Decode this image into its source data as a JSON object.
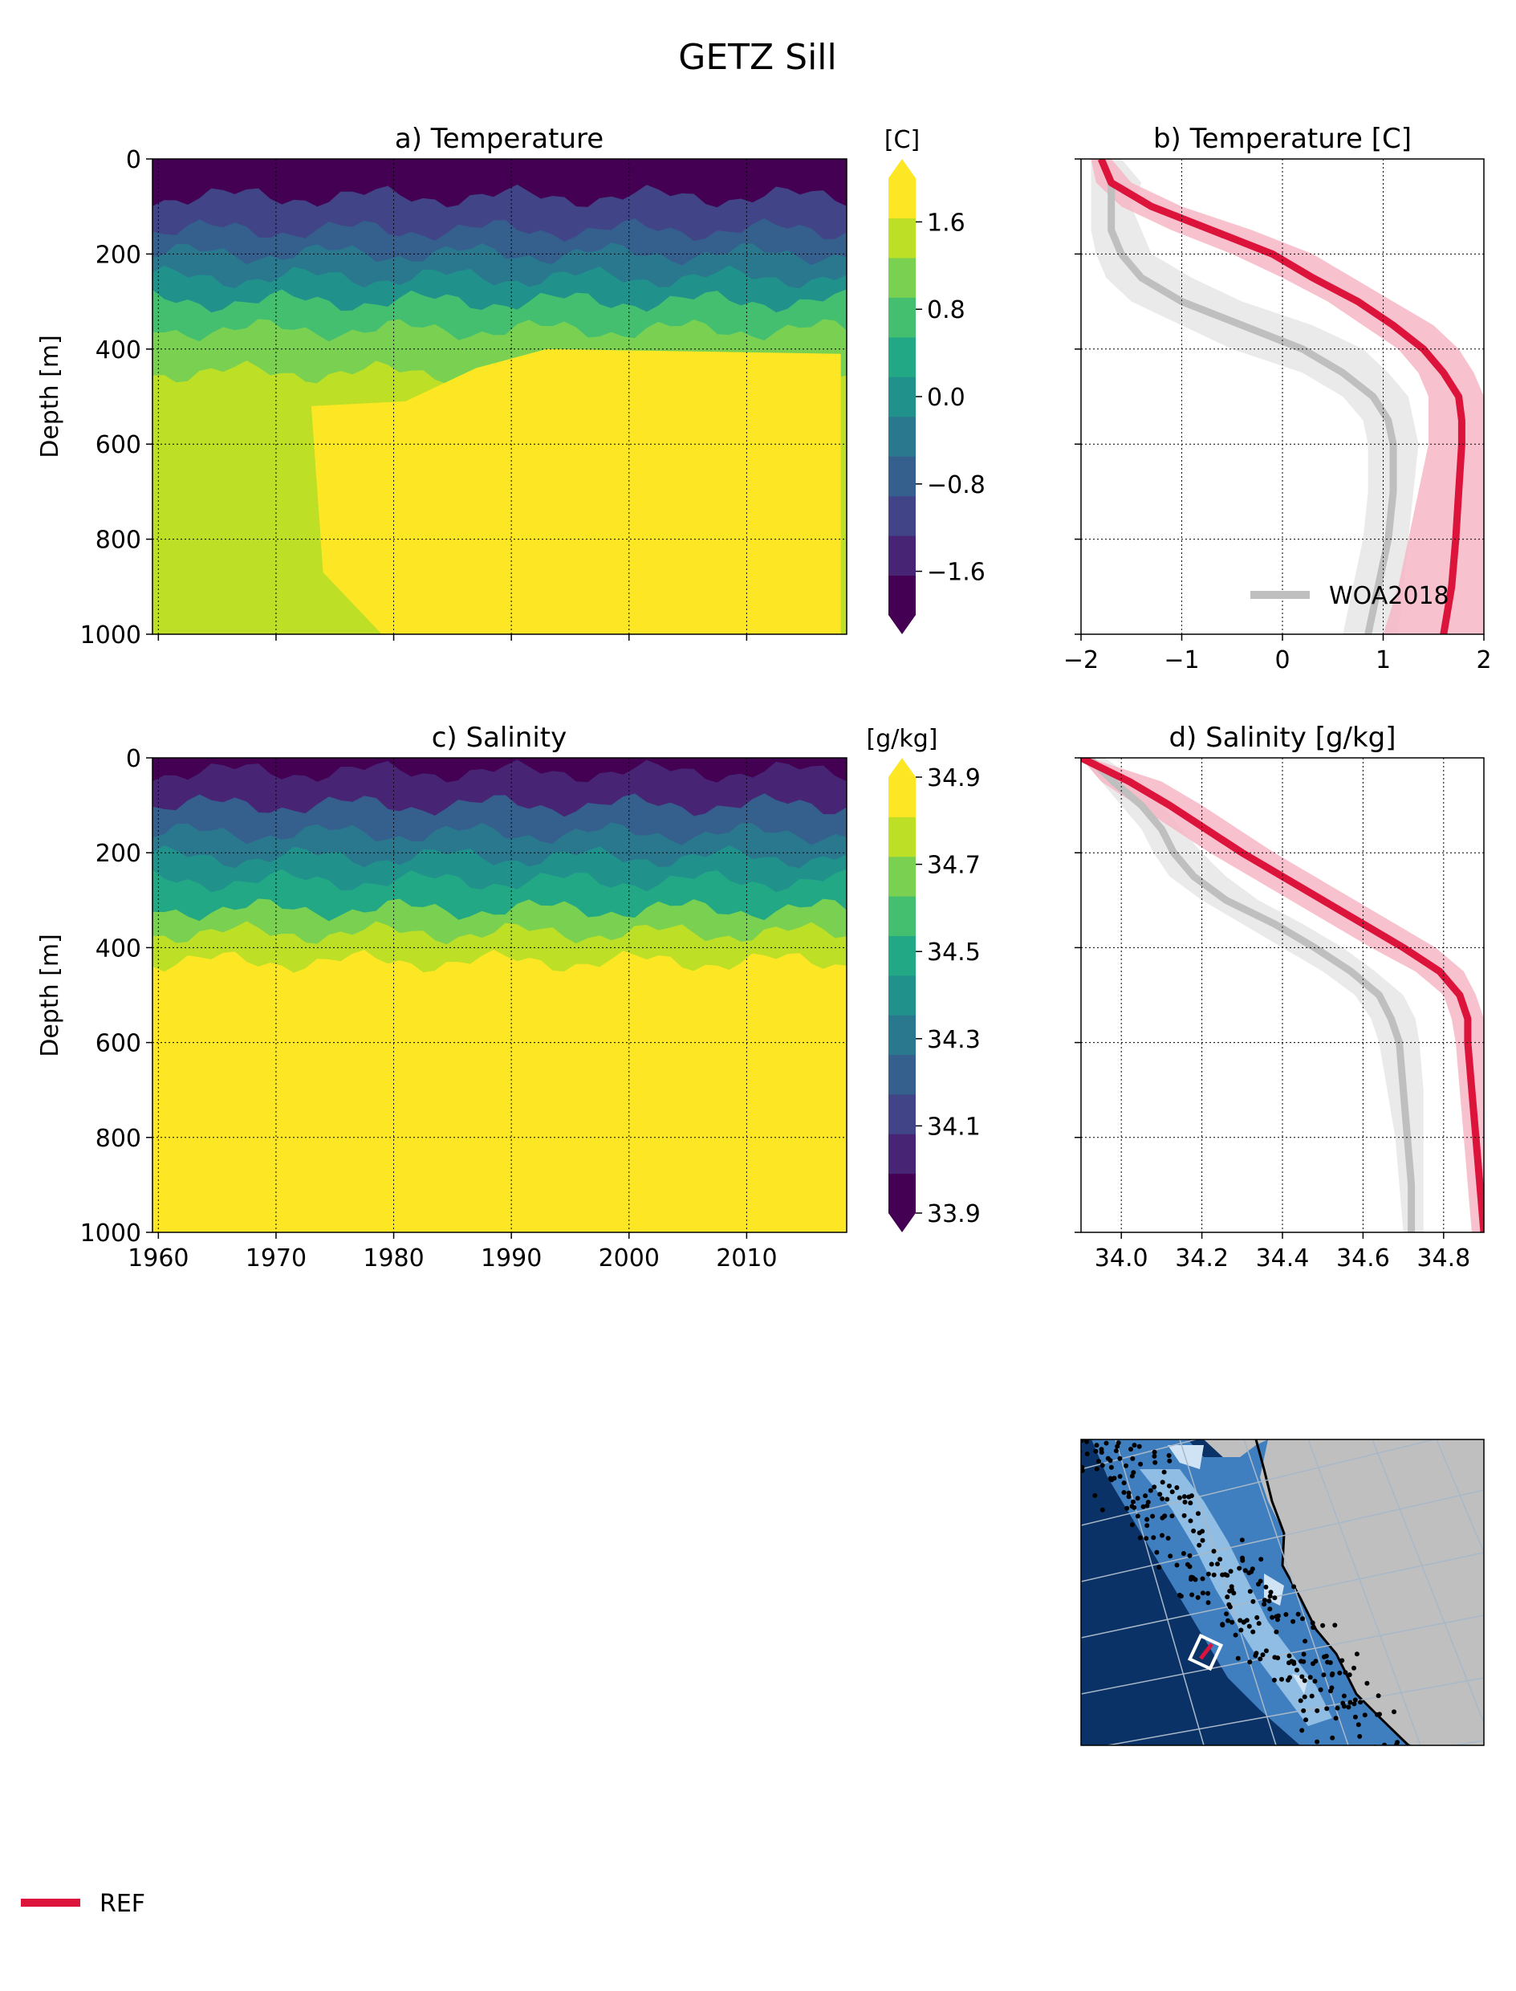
{
  "figure": {
    "title": "GETZ Sill",
    "ref_legend_label": "REF",
    "colors": {
      "ref": "#dc143c",
      "ref_band": "#f7b6c5",
      "woa": "#bfbfbf",
      "woa_band": "#e6e6e6",
      "ocean_deep": "#0b3266",
      "land": "#bfbfbf"
    },
    "viridis_levels": [
      "#440154",
      "#482475",
      "#414487",
      "#355f8d",
      "#2a788e",
      "#21918c",
      "#22a884",
      "#44bf70",
      "#7ad151",
      "#bddf26",
      "#fde725"
    ]
  },
  "chart_data": [
    {
      "id": "a",
      "type": "heatmap",
      "title": "a) Temperature",
      "ylabel": "Depth [m]",
      "colorbar_label": "[C]",
      "x_range": [
        1959.5,
        2018.5
      ],
      "y_range": [
        0,
        1000
      ],
      "x_ticks": [
        1960,
        1970,
        1980,
        1990,
        2000,
        2010
      ],
      "x_tick_labels_visible": false,
      "y_ticks": [
        0,
        200,
        400,
        600,
        800,
        1000
      ],
      "colorbar_ticks": [
        "1.6",
        "0.8",
        "0.0",
        "−0.8",
        "−1.6"
      ],
      "colorbar_tick_values": [
        1.6,
        0.8,
        0.0,
        -0.8,
        -1.6
      ],
      "colorbar_range": [
        -2.0,
        2.0
      ],
      "layers": [
        {
          "depth_top_m": 0,
          "depth_bottom_m": 80,
          "value": -1.8
        },
        {
          "depth_top_m": 80,
          "depth_bottom_m": 150,
          "value": -1.2
        },
        {
          "depth_top_m": 150,
          "depth_bottom_m": 200,
          "value": -0.8
        },
        {
          "depth_top_m": 200,
          "depth_bottom_m": 250,
          "value": -0.4
        },
        {
          "depth_top_m": 250,
          "depth_bottom_m": 300,
          "value": 0.0
        },
        {
          "depth_top_m": 300,
          "depth_bottom_m": 360,
          "value": 0.6
        },
        {
          "depth_top_m": 360,
          "depth_bottom_m": 450,
          "value": 1.0
        },
        {
          "depth_top_m": 450,
          "depth_bottom_m": 1000,
          "value": 1.5
        }
      ],
      "warm_core": {
        "from_year": 1973,
        "to_year": 2018,
        "top_depth_m": 520,
        "value": 1.9
      },
      "warmest_patch": {
        "from_year": 1992,
        "to_year": 2007,
        "top_depth_m": 540,
        "bottom_depth_m": 870,
        "value": 2.0
      },
      "grid": true
    },
    {
      "id": "b",
      "type": "line",
      "title": "b) Temperature [C]",
      "x_range": [
        -2,
        2
      ],
      "y_range": [
        0,
        1000
      ],
      "x_ticks": [
        "−2",
        "−1",
        "0",
        "1",
        "2"
      ],
      "x_tick_values": [
        -2,
        -1,
        0,
        1,
        2
      ],
      "y_ticks": [
        0,
        200,
        400,
        600,
        800,
        1000
      ],
      "legend": {
        "position": "lower-right",
        "entries": [
          "WOA2018"
        ]
      },
      "grid": true,
      "series": [
        {
          "name": "REF",
          "depth": [
            0,
            50,
            100,
            150,
            200,
            250,
            300,
            350,
            400,
            450,
            500,
            550,
            600,
            700,
            800,
            900,
            1000
          ],
          "values": [
            -1.8,
            -1.7,
            -1.3,
            -0.7,
            -0.1,
            0.3,
            0.75,
            1.1,
            1.4,
            1.6,
            1.75,
            1.78,
            1.78,
            1.75,
            1.72,
            1.68,
            1.6
          ],
          "band_low": [
            -1.9,
            -1.85,
            -1.6,
            -1.1,
            -0.5,
            0.0,
            0.45,
            0.8,
            1.15,
            1.35,
            1.45,
            1.45,
            1.45,
            1.35,
            1.25,
            1.15,
            1.0
          ],
          "band_high": [
            -1.7,
            -1.5,
            -1.0,
            -0.3,
            0.3,
            0.7,
            1.1,
            1.5,
            1.75,
            1.9,
            2.0,
            2.0,
            2.0,
            2.0,
            2.0,
            2.0,
            2.0
          ]
        },
        {
          "name": "WOA2018",
          "depth": [
            0,
            50,
            100,
            150,
            200,
            250,
            300,
            350,
            400,
            450,
            500,
            550,
            600,
            700,
            800,
            900,
            1000
          ],
          "values": [
            -1.8,
            -1.7,
            -1.7,
            -1.7,
            -1.6,
            -1.4,
            -1.0,
            -0.4,
            0.2,
            0.6,
            0.9,
            1.05,
            1.1,
            1.1,
            1.05,
            0.95,
            0.85
          ],
          "band_low": [
            -1.9,
            -1.9,
            -1.9,
            -1.9,
            -1.85,
            -1.75,
            -1.5,
            -1.0,
            -0.5,
            0.2,
            0.6,
            0.8,
            0.85,
            0.85,
            0.8,
            0.7,
            0.6
          ],
          "band_high": [
            -1.6,
            -1.4,
            -1.5,
            -1.4,
            -1.3,
            -0.9,
            -0.4,
            0.3,
            0.8,
            1.05,
            1.25,
            1.3,
            1.35,
            1.3,
            1.25,
            1.2,
            1.15
          ]
        }
      ]
    },
    {
      "id": "c",
      "type": "heatmap",
      "title": "c) Salinity",
      "ylabel": "Depth [m]",
      "colorbar_label": "[g/kg]",
      "x_range": [
        1959.5,
        2018.5
      ],
      "y_range": [
        0,
        1000
      ],
      "x_ticks": [
        1960,
        1970,
        1980,
        1990,
        2000,
        2010
      ],
      "x_tick_labels": [
        "1960",
        "1970",
        "1980",
        "1990",
        "2000",
        "2010"
      ],
      "y_ticks": [
        0,
        200,
        400,
        600,
        800,
        1000
      ],
      "colorbar_ticks": [
        "34.9",
        "34.7",
        "34.5",
        "34.3",
        "34.1",
        "33.9"
      ],
      "colorbar_tick_values": [
        34.9,
        34.7,
        34.5,
        34.3,
        34.1,
        33.9
      ],
      "colorbar_range": [
        33.9,
        34.9
      ],
      "layers": [
        {
          "depth_top_m": 0,
          "depth_bottom_m": 30,
          "value": 33.97
        },
        {
          "depth_top_m": 30,
          "depth_bottom_m": 100,
          "value": 34.08
        },
        {
          "depth_top_m": 100,
          "depth_bottom_m": 160,
          "value": 34.2
        },
        {
          "depth_top_m": 160,
          "depth_bottom_m": 210,
          "value": 34.33
        },
        {
          "depth_top_m": 210,
          "depth_bottom_m": 260,
          "value": 34.43
        },
        {
          "depth_top_m": 260,
          "depth_bottom_m": 320,
          "value": 34.53
        },
        {
          "depth_top_m": 320,
          "depth_bottom_m": 370,
          "value": 34.63
        },
        {
          "depth_top_m": 370,
          "depth_bottom_m": 430,
          "value": 34.73
        },
        {
          "depth_top_m": 430,
          "depth_bottom_m": 1000,
          "value": 34.85
        }
      ],
      "grid": true
    },
    {
      "id": "d",
      "type": "line",
      "title": "d) Salinity [g/kg]",
      "x_range": [
        33.9,
        34.9
      ],
      "y_range": [
        0,
        1000
      ],
      "x_ticks": [
        "34.0",
        "34.2",
        "34.4",
        "34.6",
        "34.8"
      ],
      "x_tick_values": [
        34.0,
        34.2,
        34.4,
        34.6,
        34.8
      ],
      "y_ticks": [
        0,
        200,
        400,
        600,
        800,
        1000
      ],
      "grid": true,
      "series": [
        {
          "name": "REF",
          "depth": [
            0,
            50,
            100,
            150,
            200,
            250,
            300,
            350,
            400,
            450,
            500,
            550,
            600,
            700,
            800,
            900,
            1000
          ],
          "values": [
            33.9,
            34.02,
            34.12,
            34.21,
            34.3,
            34.4,
            34.5,
            34.6,
            34.7,
            34.79,
            34.84,
            34.86,
            34.86,
            34.87,
            34.88,
            34.89,
            34.9
          ],
          "band_low": [
            33.9,
            33.95,
            34.04,
            34.13,
            34.22,
            34.32,
            34.42,
            34.52,
            34.62,
            34.73,
            34.8,
            34.82,
            34.83,
            34.84,
            34.85,
            34.86,
            34.87
          ],
          "band_high": [
            33.92,
            34.1,
            34.2,
            34.29,
            34.38,
            34.48,
            34.58,
            34.68,
            34.78,
            34.85,
            34.88,
            34.9,
            34.9,
            34.9,
            34.9,
            34.9,
            34.9
          ]
        },
        {
          "name": "WOA2018",
          "depth": [
            0,
            50,
            100,
            150,
            200,
            250,
            300,
            350,
            400,
            450,
            500,
            550,
            600,
            700,
            800,
            900,
            1000
          ],
          "values": [
            33.92,
            33.98,
            34.05,
            34.1,
            34.13,
            34.18,
            34.26,
            34.38,
            34.48,
            34.57,
            34.64,
            34.67,
            34.69,
            34.7,
            34.71,
            34.72,
            34.72
          ],
          "band_low": [
            33.9,
            33.95,
            34.0,
            34.05,
            34.08,
            34.12,
            34.2,
            34.3,
            34.4,
            34.5,
            34.58,
            34.62,
            34.64,
            34.66,
            34.68,
            34.69,
            34.7
          ],
          "band_high": [
            33.96,
            34.04,
            34.1,
            34.15,
            34.2,
            34.26,
            34.34,
            34.45,
            34.55,
            34.63,
            34.7,
            34.73,
            34.74,
            34.75,
            34.75,
            34.75,
            34.75
          ]
        }
      ]
    }
  ],
  "map_inset": {
    "label": "",
    "highlight_box": "#ffffff",
    "highlight_section": "#dc143c"
  }
}
